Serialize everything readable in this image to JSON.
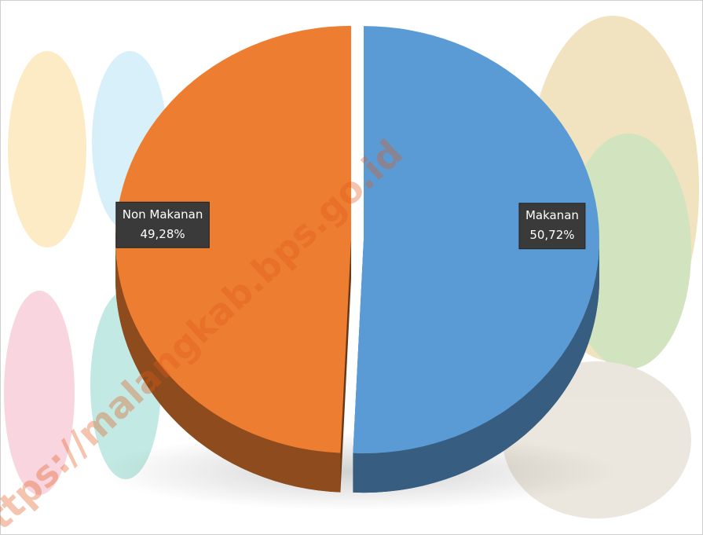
{
  "chart_data": {
    "type": "pie",
    "categories": [
      "Makanan",
      "Non Makanan"
    ],
    "values": [
      50.72,
      49.28
    ],
    "value_labels": [
      "50,72%",
      "49,28%"
    ],
    "colors": [
      "#5b9bd5",
      "#ed7d31"
    ],
    "watermark": "https://malangkab.bps.go.id"
  }
}
